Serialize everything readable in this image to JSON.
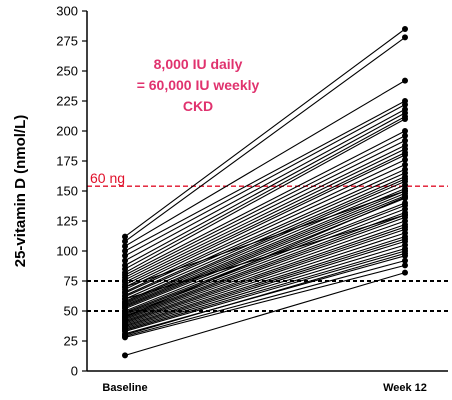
{
  "chart_data": {
    "type": "line",
    "ylabel": "25-vitamin D (nmol/L)",
    "categories": [
      "Baseline",
      "Week 12"
    ],
    "ylim": [
      0,
      300
    ],
    "yticks": [
      0,
      25,
      50,
      75,
      100,
      125,
      150,
      175,
      200,
      225,
      250,
      275,
      300
    ],
    "annotation_lines": [
      "8,000 IU daily",
      "= 60,000 IU weekly",
      "CKD"
    ],
    "reference_lines": [
      {
        "y": 154,
        "label": "60 ng",
        "style": "dashed",
        "color": "#e0102a"
      },
      {
        "y": 75,
        "label": "",
        "style": "dashed",
        "color": "#000000"
      },
      {
        "y": 50,
        "label": "",
        "style": "dashed",
        "color": "#000000"
      }
    ],
    "colors": {
      "annotation": "#e0326e",
      "reference": "#e0102a",
      "lines": "#000000"
    },
    "pairs": [
      [
        112,
        285
      ],
      [
        108,
        278
      ],
      [
        104,
        242
      ],
      [
        100,
        225
      ],
      [
        96,
        222
      ],
      [
        92,
        218
      ],
      [
        88,
        215
      ],
      [
        85,
        212
      ],
      [
        82,
        210
      ],
      [
        80,
        200
      ],
      [
        78,
        196
      ],
      [
        76,
        192
      ],
      [
        74,
        188
      ],
      [
        72,
        185
      ],
      [
        70,
        182
      ],
      [
        68,
        180
      ],
      [
        66,
        176
      ],
      [
        65,
        172
      ],
      [
        63,
        168
      ],
      [
        62,
        165
      ],
      [
        60,
        162
      ],
      [
        58,
        160
      ],
      [
        57,
        158
      ],
      [
        56,
        155
      ],
      [
        55,
        152
      ],
      [
        54,
        150
      ],
      [
        53,
        148
      ],
      [
        52,
        146
      ],
      [
        50,
        144
      ],
      [
        49,
        140
      ],
      [
        48,
        138
      ],
      [
        47,
        135
      ],
      [
        46,
        132
      ],
      [
        45,
        130
      ],
      [
        44,
        128
      ],
      [
        43,
        125
      ],
      [
        42,
        122
      ],
      [
        41,
        120
      ],
      [
        40,
        118
      ],
      [
        39,
        115
      ],
      [
        38,
        112
      ],
      [
        37,
        110
      ],
      [
        36,
        108
      ],
      [
        35,
        105
      ],
      [
        34,
        102
      ],
      [
        33,
        100
      ],
      [
        31,
        96
      ],
      [
        29,
        92
      ],
      [
        28,
        88
      ],
      [
        30,
        98
      ],
      [
        45,
        145
      ],
      [
        70,
        150
      ],
      [
        60,
        130
      ],
      [
        13,
        82
      ]
    ]
  }
}
